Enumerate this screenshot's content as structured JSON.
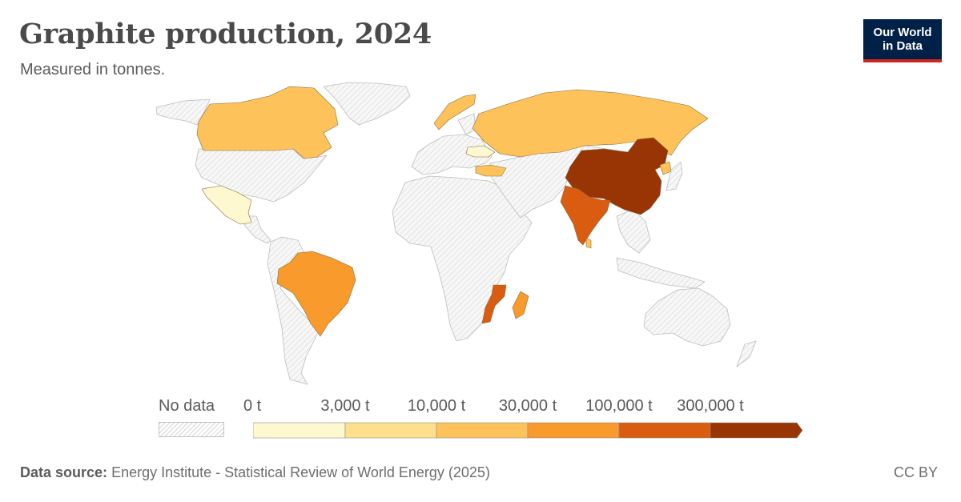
{
  "header": {
    "title": "Graphite production, 2024",
    "subtitle": "Measured in tonnes."
  },
  "logo": {
    "line1": "Our World",
    "line2": "in Data"
  },
  "legend": {
    "no_data_label": "No data",
    "ticks": [
      "0 t",
      "3,000 t",
      "10,000 t",
      "30,000 t",
      "100,000 t",
      "300,000 t"
    ],
    "bin_colors": [
      "#fef8d0",
      "#fee08c",
      "#fdc35a",
      "#f99a2c",
      "#d95c10",
      "#993404"
    ]
  },
  "map": {
    "nodata_color": "#f2f2f2",
    "border_color": "#bdbdbd",
    "countries": [
      {
        "name": "China",
        "bin": 5,
        "color": "#993404"
      },
      {
        "name": "India",
        "bin": 4,
        "color": "#d95c10"
      },
      {
        "name": "Mozambique",
        "bin": 4,
        "color": "#d95c10"
      },
      {
        "name": "Brazil",
        "bin": 3,
        "color": "#f99a2c"
      },
      {
        "name": "Madagascar",
        "bin": 3,
        "color": "#f99a2c"
      },
      {
        "name": "Canada",
        "bin": 2,
        "color": "#fdc35a"
      },
      {
        "name": "Russia",
        "bin": 2,
        "color": "#fdc35a"
      },
      {
        "name": "Norway",
        "bin": 2,
        "color": "#fdc35a"
      },
      {
        "name": "Turkey",
        "bin": 2,
        "color": "#fdc35a"
      },
      {
        "name": "North Korea",
        "bin": 2,
        "color": "#fdc35a"
      },
      {
        "name": "Sri Lanka",
        "bin": 2,
        "color": "#fdc35a"
      },
      {
        "name": "Mexico",
        "bin": 0,
        "color": "#fef8d0"
      },
      {
        "name": "Ukraine",
        "bin": 0,
        "color": "#fef8d0"
      }
    ]
  },
  "footer": {
    "source_label": "Data source:",
    "source_text": "Energy Institute - Statistical Review of World Energy (2025)",
    "license": "CC BY"
  }
}
